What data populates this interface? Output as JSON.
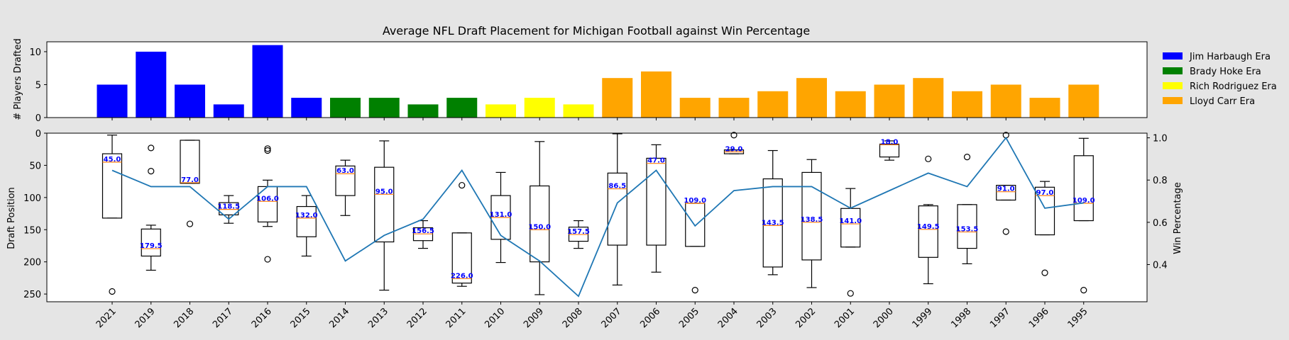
{
  "chart_data": {
    "title": "Average NFL Draft Placement for Michigan Football against Win Percentage",
    "years": [
      "2021",
      "2019",
      "2018",
      "2017",
      "2016",
      "2015",
      "2014",
      "2013",
      "2012",
      "2011",
      "2010",
      "2009",
      "2008",
      "2007",
      "2006",
      "2005",
      "2004",
      "2003",
      "2002",
      "2001",
      "2000",
      "1999",
      "1998",
      "1997",
      "1996",
      "1995"
    ],
    "top": {
      "type": "bar",
      "ylabel": "# Players Drafted",
      "ylim": [
        0,
        11.5
      ],
      "yticks": [
        0,
        5,
        10
      ],
      "values": [
        5,
        10,
        5,
        2,
        11,
        3,
        3,
        3,
        2,
        3,
        2,
        3,
        2,
        6,
        7,
        3,
        3,
        4,
        6,
        4,
        5,
        6,
        4,
        5,
        3,
        5
      ],
      "eras": [
        "Jim Harbaugh Era",
        "Jim Harbaugh Era",
        "Jim Harbaugh Era",
        "Jim Harbaugh Era",
        "Jim Harbaugh Era",
        "Jim Harbaugh Era",
        "Brady Hoke Era",
        "Brady Hoke Era",
        "Brady Hoke Era",
        "Brady Hoke Era",
        "Rich Rodriguez Era",
        "Rich Rodriguez Era",
        "Rich Rodriguez Era",
        "Lloyd Carr Era",
        "Lloyd Carr Era",
        "Lloyd Carr Era",
        "Lloyd Carr Era",
        "Lloyd Carr Era",
        "Lloyd Carr Era",
        "Lloyd Carr Era",
        "Lloyd Carr Era",
        "Lloyd Carr Era",
        "Lloyd Carr Era",
        "Lloyd Carr Era",
        "Lloyd Carr Era",
        "Lloyd Carr Era"
      ],
      "legend": [
        {
          "label": "Jim Harbaugh Era",
          "color": "#0000ff"
        },
        {
          "label": "Brady Hoke Era",
          "color": "#008000"
        },
        {
          "label": "Rich Rodriguez Era",
          "color": "#ffff00"
        },
        {
          "label": "Lloyd Carr Era",
          "color": "#ffa500"
        }
      ],
      "legend_position": "right"
    },
    "bottom": {
      "type": "boxplot",
      "ylabel": "Draft Position",
      "ylim_inverted": [
        0,
        262
      ],
      "yticks": [
        0,
        50,
        100,
        150,
        200,
        250
      ],
      "boxes": [
        {
          "whislo": 3,
          "q1": 32,
          "med": 45,
          "q3": 132,
          "whishi": 132,
          "fliers": [
            246
          ]
        },
        {
          "whislo": 143,
          "q1": 149,
          "med": 179.5,
          "q3": 191,
          "whishi": 213,
          "fliers": [
            23,
            59
          ]
        },
        {
          "whislo": 11,
          "q1": 11,
          "med": 77,
          "q3": 78,
          "whishi": 78,
          "fliers": [
            141
          ]
        },
        {
          "whislo": 97,
          "q1": 108,
          "med": 118.5,
          "q3": 127,
          "whishi": 140,
          "fliers": []
        },
        {
          "whislo": 73,
          "q1": 83,
          "med": 106,
          "q3": 138,
          "whishi": 145,
          "fliers": [
            24,
            27,
            196
          ]
        },
        {
          "whislo": 97,
          "q1": 114,
          "med": 132,
          "q3": 161,
          "whishi": 191,
          "fliers": []
        },
        {
          "whislo": 42,
          "q1": 51,
          "med": 63,
          "q3": 97,
          "whishi": 128,
          "fliers": []
        },
        {
          "whislo": 12,
          "q1": 53,
          "med": 95,
          "q3": 169,
          "whishi": 244,
          "fliers": []
        },
        {
          "whislo": 136,
          "q1": 147,
          "med": 156.5,
          "q3": 167,
          "whishi": 179,
          "fliers": []
        },
        {
          "whislo": 155,
          "q1": 155,
          "med": 226,
          "q3": 233,
          "whishi": 238,
          "fliers": [
            81
          ]
        },
        {
          "whislo": 61,
          "q1": 97,
          "med": 131,
          "q3": 165,
          "whishi": 201,
          "fliers": []
        },
        {
          "whislo": 13,
          "q1": 82,
          "med": 150,
          "q3": 200,
          "whishi": 251,
          "fliers": []
        },
        {
          "whislo": 136,
          "q1": 146,
          "med": 157.5,
          "q3": 168,
          "whishi": 179,
          "fliers": []
        },
        {
          "whislo": 1,
          "q1": 62,
          "med": 86.5,
          "q3": 174,
          "whishi": 236,
          "fliers": []
        },
        {
          "whislo": 18,
          "q1": 39,
          "med": 47,
          "q3": 174,
          "whishi": 216,
          "fliers": []
        },
        {
          "whislo": 109,
          "q1": 109,
          "med": 109,
          "q3": 176,
          "whishi": 176,
          "fliers": [
            244
          ]
        },
        {
          "whislo": 26,
          "q1": 26,
          "med": 29,
          "q3": 32,
          "whishi": 32,
          "fliers": [
            3
          ]
        },
        {
          "whislo": 27,
          "q1": 71,
          "med": 143.5,
          "q3": 208,
          "whishi": 220,
          "fliers": []
        },
        {
          "whislo": 41,
          "q1": 61,
          "med": 138.5,
          "q3": 197,
          "whishi": 240,
          "fliers": []
        },
        {
          "whislo": 86,
          "q1": 117,
          "med": 141,
          "q3": 177,
          "whishi": 177,
          "fliers": [
            249
          ]
        },
        {
          "whislo": 12,
          "q1": 17,
          "med": 18,
          "q3": 37,
          "whishi": 42,
          "fliers": []
        },
        {
          "whislo": 111,
          "q1": 113,
          "med": 149.5,
          "q3": 193,
          "whishi": 234,
          "fliers": [
            40
          ]
        },
        {
          "whislo": 111,
          "q1": 111,
          "med": 153.5,
          "q3": 179,
          "whishi": 203,
          "fliers": [
            37
          ]
        },
        {
          "whislo": 81,
          "q1": 81,
          "med": 91,
          "q3": 104,
          "whishi": 104,
          "fliers": [
            3,
            153
          ]
        },
        {
          "whislo": 75,
          "q1": 84,
          "med": 97,
          "q3": 158,
          "whishi": 158,
          "fliers": [
            217
          ]
        },
        {
          "whislo": 8,
          "q1": 35,
          "med": 109,
          "q3": 136,
          "whishi": 136,
          "fliers": [
            244
          ]
        }
      ],
      "median_labels": [
        "45.0",
        "179.5",
        "77.0",
        "118.5",
        "106.0",
        "132.0",
        "63.0",
        "95.0",
        "156.5",
        "226.0",
        "131.0",
        "150.0",
        "157.5",
        "86.5",
        "47.0",
        "109.0",
        "29.0",
        "143.5",
        "138.5",
        "141.0",
        "18.0",
        "149.5",
        "153.5",
        "91.0",
        "97.0",
        "109.0"
      ],
      "y2label": "Win Percentage",
      "y2lim": [
        0.224,
        1.022
      ],
      "y2ticks": [
        0.4,
        0.6,
        0.8,
        1.0
      ],
      "win_pct": [
        0.846,
        0.769,
        0.769,
        0.615,
        0.769,
        0.769,
        0.417,
        0.538,
        0.615,
        0.846,
        0.538,
        0.417,
        0.25,
        0.692,
        0.846,
        0.583,
        0.75,
        0.769,
        0.769,
        0.667,
        0.75,
        0.833,
        0.769,
        1.0,
        0.667,
        0.692
      ]
    }
  }
}
